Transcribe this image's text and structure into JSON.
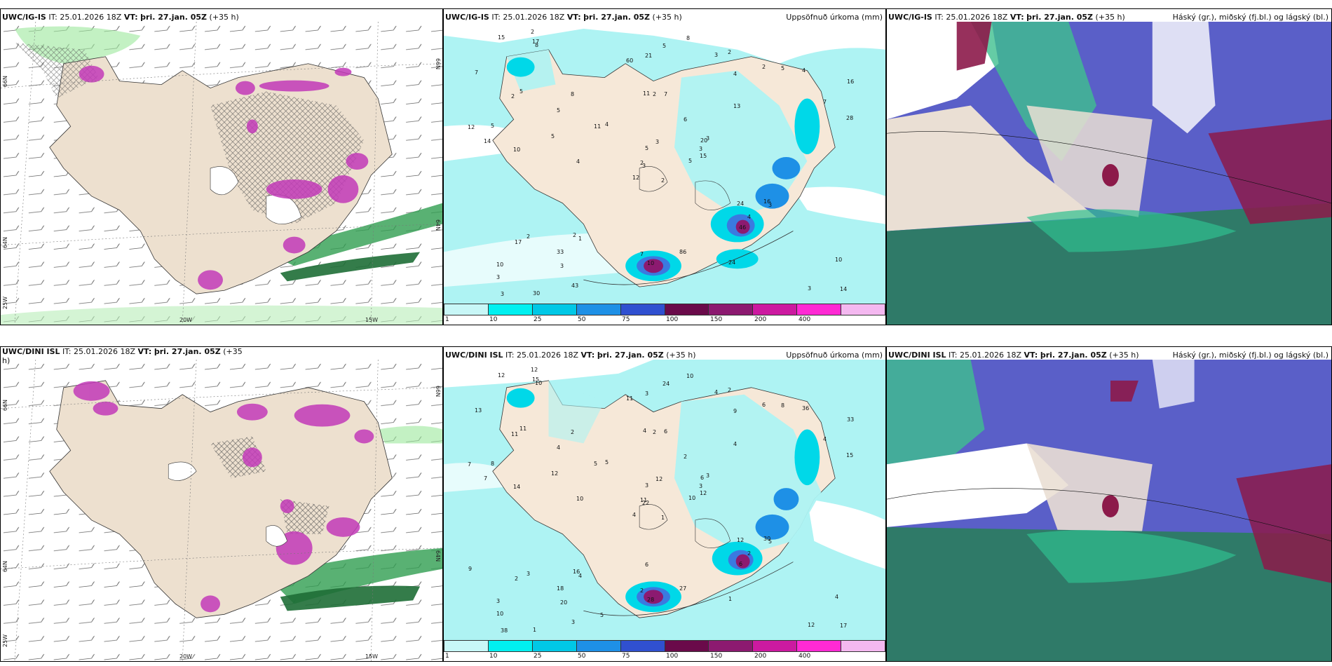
{
  "panels": [
    {
      "id": "p1",
      "model": "UWC/IG-IS",
      "it": "IT: 25.01.2026 18Z",
      "vt_label": "VT:",
      "vt": "þri. 27.jan. 05Z",
      "lead": "(+35 h)",
      "right": ""
    },
    {
      "id": "p2",
      "model": "UWC/IG-IS",
      "it": "IT: 25.01.2026 18Z",
      "vt_label": "VT:",
      "vt": "þri. 27.jan. 05Z",
      "lead": "(+35 h)",
      "right": "Uppsöfnuð úrkoma (mm)"
    },
    {
      "id": "p3",
      "model": "UWC/IG-IS",
      "it": "IT: 25.01.2026 18Z",
      "vt_label": "VT:",
      "vt": "þri. 27.jan. 05Z",
      "lead": "(+35 h)",
      "right": "Háský (gr.), miðský (fj.bl.) og lágský (bl.)"
    },
    {
      "id": "p4",
      "model": "UWC/DINI ISL",
      "it": "IT: 25.01.2026 18Z",
      "vt_label": "VT:",
      "vt": "þri. 27.jan. 05Z",
      "lead": "(+35",
      "lead2": "h)",
      "right": ""
    },
    {
      "id": "p5",
      "model": "UWC/DINI ISL",
      "it": "IT: 25.01.2026 18Z",
      "vt_label": "VT:",
      "vt": "þri. 27.jan. 05Z",
      "lead": "(+35 h)",
      "right": "Uppsöfnuð úrkoma (mm)"
    },
    {
      "id": "p6",
      "model": "UWC/DINI ISL",
      "it": "IT: 25.01.2026 18Z",
      "vt_label": "VT:",
      "vt": "þri. 27.jan. 05Z",
      "lead": "(+35 h)",
      "right": "Háský (gr.), miðský (fj.bl.) og lágský (bl.)"
    }
  ],
  "axes": {
    "lat_66": "66N",
    "lat_64": "64N",
    "lon_25": "25W",
    "lon_20": "20W",
    "lon_15": "15W"
  },
  "colorbar": {
    "ticks": [
      "1",
      "10",
      "25",
      "50",
      "75",
      "100",
      "150",
      "200",
      "400"
    ],
    "colors": [
      "#c8f7f7",
      "#00f0f0",
      "#00c8e6",
      "#1e90e6",
      "#3050d0",
      "#6a0a4a",
      "#8c1a70",
      "#cc1aa0",
      "#ff2ad4",
      "#f4b8f0"
    ]
  },
  "precip_values_top": [
    "2",
    "2",
    "3",
    "10",
    "20",
    "1",
    "2",
    "7",
    "4",
    "5",
    "8",
    "14",
    "10",
    "16",
    "12",
    "13",
    "30",
    "11",
    "6",
    "2",
    "4",
    "3",
    "3",
    "2",
    "3",
    "3",
    "5",
    "21",
    "14",
    "24",
    "28",
    "2",
    "7",
    "5",
    "8",
    "2",
    "2",
    "3",
    "10",
    "16",
    "8",
    "11",
    "5",
    "46",
    "43",
    "12",
    "3",
    "3",
    "10",
    "15",
    "17",
    "7",
    "7",
    "4",
    "24",
    "33",
    "17",
    "15",
    "86",
    "4",
    "5",
    "4",
    "5",
    "5",
    "5",
    "2",
    "3",
    "60",
    "3"
  ],
  "precip_values_bottom": [
    "1",
    "11",
    "22",
    "3",
    "6",
    "4",
    "2",
    "6",
    "9",
    "10",
    "10",
    "17",
    "14",
    "33",
    "4",
    "4",
    "1",
    "4",
    "2",
    "3",
    "5",
    "10",
    "20",
    "2",
    "3",
    "5",
    "11",
    "3",
    "7",
    "12",
    "15",
    "11",
    "2",
    "3",
    "2",
    "6",
    "16",
    "12",
    "4",
    "30",
    "10",
    "5",
    "12",
    "6",
    "3",
    "7",
    "3",
    "38",
    "28",
    "12",
    "2",
    "4",
    "13",
    "2",
    "1",
    "18",
    "15",
    "12",
    "27",
    "36",
    "24",
    "10",
    "8",
    "4",
    "8",
    "12",
    "4",
    "11",
    "12",
    "9",
    "6",
    "5"
  ],
  "cloud_legend": "Háský (gr.), miðský (fj.bl.) og lágský (bl.)"
}
